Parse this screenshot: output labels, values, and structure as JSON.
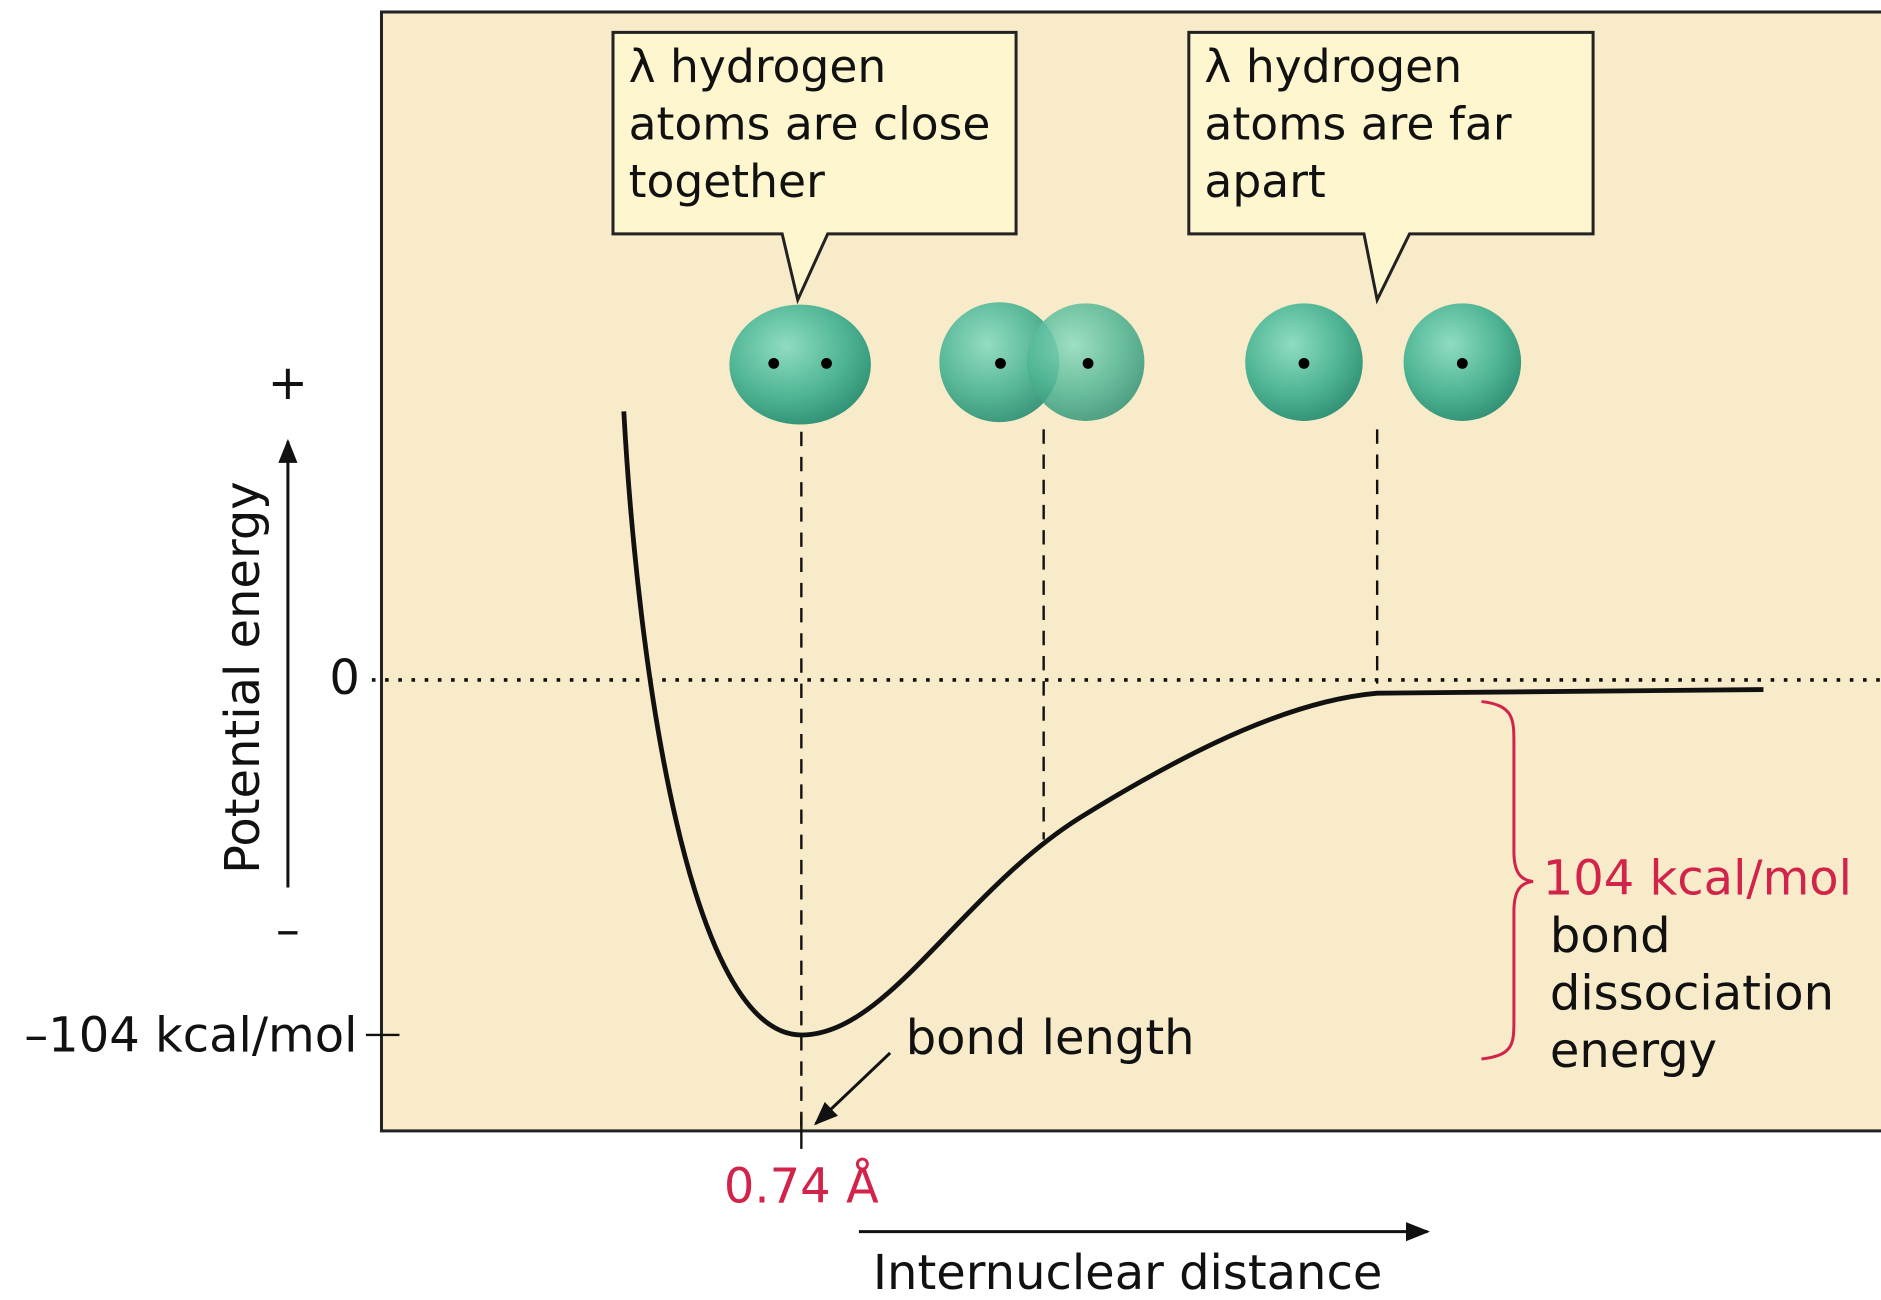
{
  "callouts": [
    {
      "lines": [
        "λ hydrogen",
        "atoms are close",
        "together"
      ]
    },
    {
      "lines": [
        "λ hydrogen",
        "atoms are far",
        "apart"
      ]
    }
  ],
  "axes": {
    "y_label": "Potential energy",
    "y_plus": "+",
    "y_minus": "–",
    "zero_label": "0",
    "min_label": "–104 kcal/mol",
    "x_label": "Internuclear distance",
    "bond_length_value": "0.74 Å"
  },
  "annotations": {
    "bond_length": "bond length",
    "energy_value": "104 kcal/mol",
    "energy_lines": [
      "bond",
      "dissociation",
      "energy"
    ]
  }
}
